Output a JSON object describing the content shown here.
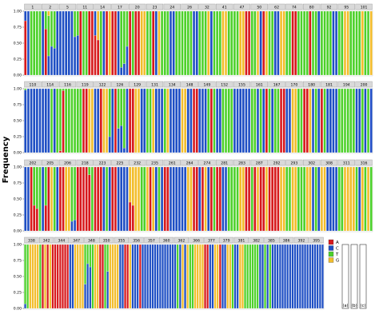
{
  "chart_data": {
    "type": "bar",
    "stacked": true,
    "ylabel": "Frequency",
    "ylim": [
      0,
      1
    ],
    "y_ticks": [
      "0.00",
      "0.25",
      "0.50",
      "0.75",
      "1.00"
    ],
    "legend": {
      "placement": "right",
      "entries": [
        {
          "label": "A",
          "color": "#d7191c"
        },
        {
          "label": "C",
          "color": "#1f4fc4"
        },
        {
          "label": "T",
          "color": "#4dd12a"
        },
        {
          "label": "G",
          "color": "#f2bd2b"
        }
      ]
    },
    "key_panel": {
      "labels": [
        "(a)",
        "(b)",
        "(c)"
      ]
    },
    "panels": [
      {
        "positions": [
          "1",
          "2",
          "5",
          "11",
          "14",
          "17",
          "20",
          "23",
          "24",
          "26",
          "32",
          "41",
          "47",
          "50",
          "62",
          "74",
          "80",
          "92",
          "95",
          "101"
        ],
        "columns": [
          [
            "C",
            "C",
            "C",
            "C",
            "C",
            "C",
            "C",
            "A",
            "A",
            "A",
            "A",
            "A",
            "A",
            "T",
            "T",
            "T",
            "T",
            "T",
            "T",
            "T",
            "T",
            "T",
            "T",
            "T",
            "T",
            "T",
            "T",
            "T",
            "T",
            "T",
            "T",
            "T",
            "T",
            "T",
            "T",
            "T",
            "T",
            "T",
            "T",
            "T"
          ],
          [
            "T",
            "T",
            "T",
            "C",
            "C",
            "C",
            "T",
            "T",
            "T",
            "C",
            "C",
            "C",
            "A",
            "A",
            "A",
            "C",
            "C",
            "C",
            "T",
            "T",
            "T",
            "G",
            "G",
            "G",
            "G",
            "G",
            "G",
            "C",
            "C",
            "C",
            "A",
            "A",
            "A",
            "T",
            "T",
            "T",
            "G",
            "G",
            "G",
            "T"
          ],
          [
            "T",
            "T",
            "T",
            "C",
            "C",
            "C",
            "A",
            "A",
            "A",
            "G",
            "G",
            "G",
            "G",
            "G",
            "G",
            "T",
            "T",
            "T",
            "C",
            "C",
            "C",
            "T",
            "T",
            "T",
            "A",
            "A",
            "A",
            "G",
            "G",
            "G",
            "T",
            "T",
            "T",
            "C",
            "C",
            "C",
            "T",
            "T",
            "T",
            "G"
          ]
        ],
        "mixes": [
          {
            "col": 0,
            "mix": {
              "A": 0.85,
              "C": 0.15
            }
          },
          {
            "col": 7,
            "mix": {
              "A": 0.72,
              "T": 0.28
            }
          },
          {
            "col": 8,
            "mix": {
              "T": 0.63,
              "G": 0.07,
              "C": 0.3
            }
          },
          {
            "col": 9,
            "mix": {
              "T": 0.55,
              "C": 0.45
            }
          },
          {
            "col": 10,
            "mix": {
              "T": 0.58,
              "C": 0.42
            }
          },
          {
            "col": 17,
            "mix": {
              "T": 0.4,
              "C": 0.6
            }
          },
          {
            "col": 18,
            "mix": {
              "T": 0.38,
              "C": 0.62
            }
          },
          {
            "col": 24,
            "mix": {
              "A": 0.62,
              "C": 0.38
            }
          },
          {
            "col": 25,
            "mix": {
              "A": 0.55,
              "G": 0.45
            }
          },
          {
            "col": 33,
            "mix": {
              "T": 0.88,
              "C": 0.12
            }
          },
          {
            "col": 34,
            "mix": {
              "T": 0.82,
              "C": 0.18
            }
          },
          {
            "col": 35,
            "mix": {
              "T": 0.55,
              "C": 0.45
            }
          }
        ]
      },
      {
        "positions": [
          "110",
          "114",
          "116",
          "119",
          "122",
          "126",
          "129",
          "131",
          "134",
          "148",
          "149",
          "152",
          "155",
          "161",
          "167",
          "170",
          "180",
          "181",
          "194",
          "200"
        ],
        "columns": [
          [
            "C",
            "C",
            "C",
            "C",
            "C",
            "T",
            "T",
            "T",
            "C",
            "C",
            "C",
            "A",
            "A",
            "A",
            "T",
            "T",
            "T",
            "G",
            "G",
            "G",
            "C",
            "C",
            "C",
            "C",
            "C",
            "C",
            "T",
            "T",
            "T",
            "C",
            "C",
            "C",
            "A",
            "A",
            "A",
            "T",
            "T",
            "T",
            "C",
            "C"
          ],
          [
            "C",
            "C",
            "C",
            "T",
            "T",
            "T",
            "A",
            "A",
            "A",
            "G",
            "G",
            "G",
            "G",
            "G",
            "G",
            "C",
            "C",
            "C",
            "C",
            "C",
            "C",
            "T",
            "T",
            "T",
            "C",
            "C",
            "C",
            "T",
            "T",
            "T",
            "G",
            "G",
            "G",
            "C",
            "C",
            "C",
            "T",
            "T",
            "T",
            "C"
          ],
          [
            "C",
            "C",
            "C",
            "T",
            "T",
            "T",
            "G",
            "G",
            "G",
            "C",
            "C",
            "C",
            "C",
            "C",
            "C",
            "C",
            "C",
            "C",
            "A",
            "A",
            "A",
            "T",
            "T",
            "T",
            "C",
            "C",
            "C",
            "A",
            "A",
            "A",
            "T",
            "T",
            "T",
            "C",
            "C",
            "C",
            "T",
            "T",
            "T",
            "C"
          ]
        ],
        "mixes": [
          {
            "col": 0,
            "mix": {
              "T": 0.02,
              "C": 0.98
            }
          },
          {
            "col": 12,
            "mix": {
              "A": 0.03,
              "T": 0.97
            }
          },
          {
            "col": 13,
            "mix": {
              "A": 0.97,
              "T": 0.03
            }
          },
          {
            "col": 29,
            "mix": {
              "T": 0.75,
              "C": 0.25
            }
          },
          {
            "col": 32,
            "mix": {
              "T": 0.62,
              "C": 0.38
            }
          },
          {
            "col": 33,
            "mix": {
              "T": 0.58,
              "C": 0.42
            }
          },
          {
            "col": 34,
            "mix": {
              "T": 0.93,
              "C": 0.07
            }
          }
        ]
      },
      {
        "positions": [
          "202",
          "205",
          "206",
          "218",
          "223",
          "225",
          "232",
          "235",
          "261",
          "264",
          "274",
          "281",
          "283",
          "287",
          "292",
          "293",
          "302",
          "308",
          "311",
          "316"
        ],
        "columns": [
          [
            "C",
            "C",
            "C",
            "A",
            "A",
            "A",
            "A",
            "A",
            "A",
            "A",
            "A",
            "A",
            "G",
            "G",
            "G",
            "A",
            "A",
            "A",
            "C",
            "C",
            "C",
            "A",
            "A",
            "A",
            "T",
            "T",
            "T",
            "A",
            "A",
            "A",
            "T",
            "T",
            "T",
            "G",
            "G",
            "G",
            "T",
            "T",
            "T",
            "C"
          ],
          [
            "A",
            "A",
            "A",
            "G",
            "G",
            "G",
            "A",
            "A",
            "A",
            "C",
            "C",
            "C",
            "G",
            "G",
            "G",
            "C",
            "C",
            "C",
            "G",
            "G",
            "G",
            "C",
            "C",
            "C",
            "G",
            "G",
            "G",
            "A",
            "A",
            "A",
            "G",
            "G",
            "G",
            "C",
            "C",
            "C",
            "G",
            "G",
            "G",
            "T"
          ],
          [
            "T",
            "T",
            "T",
            "C",
            "C",
            "C",
            "T",
            "T",
            "T",
            "C",
            "C",
            "C",
            "T",
            "T",
            "T",
            "C",
            "C",
            "C",
            "A",
            "A",
            "A",
            "T",
            "T",
            "T",
            "A",
            "A",
            "A",
            "G",
            "G",
            "G",
            "T",
            "T",
            "T",
            "C",
            "C",
            "C",
            "G",
            "G",
            "G",
            "T"
          ]
        ],
        "mixes": [
          {
            "col": 3,
            "mix": {
              "A": 0.4,
              "T": 0.6
            }
          },
          {
            "col": 4,
            "mix": {
              "A": 0.35,
              "T": 0.65
            }
          },
          {
            "col": 7,
            "mix": {
              "A": 0.4,
              "T": 0.6
            }
          },
          {
            "col": 16,
            "mix": {
              "T": 0.85,
              "C": 0.15
            }
          },
          {
            "col": 17,
            "mix": {
              "T": 0.83,
              "C": 0.17
            }
          },
          {
            "col": 22,
            "mix": {
              "A": 0.88,
              "T": 0.12
            }
          },
          {
            "col": 36,
            "mix": {
              "A": 0.45,
              "G": 0.55
            }
          },
          {
            "col": 37,
            "mix": {
              "A": 0.4,
              "G": 0.6
            }
          }
        ]
      },
      {
        "positions": [
          "338",
          "342",
          "344",
          "347",
          "348",
          "350",
          "355",
          "356",
          "357",
          "360",
          "362",
          "366",
          "377",
          "379",
          "381",
          "382",
          "385",
          "386",
          "392",
          "395"
        ],
        "columns": [
          [
            "T",
            "T",
            "T",
            "A",
            "A",
            "A",
            "C",
            "C",
            "C",
            "A",
            "A",
            "A",
            "G",
            "G",
            "G",
            "C",
            "C",
            "C",
            "C",
            "C",
            "C",
            "T",
            "T",
            "T",
            "A",
            "A",
            "A",
            "C",
            "C",
            "C",
            "T",
            "T",
            "T",
            "C",
            "C",
            "C",
            "C",
            "C",
            "C",
            "C"
          ],
          [
            "G",
            "G",
            "G",
            "A",
            "A",
            "A",
            "G",
            "G",
            "G",
            "T",
            "T",
            "T",
            "C",
            "C",
            "C",
            "C",
            "C",
            "C",
            "C",
            "C",
            "C",
            "G",
            "G",
            "G",
            "C",
            "C",
            "C",
            "G",
            "G",
            "G",
            "T",
            "T",
            "T",
            "C",
            "C",
            "C",
            "C",
            "C",
            "C",
            "C"
          ],
          [
            "G",
            "G",
            "G",
            "A",
            "A",
            "A",
            "G",
            "G",
            "G",
            "G",
            "G",
            "G",
            "A",
            "A",
            "A",
            "C",
            "C",
            "C",
            "C",
            "C",
            "C",
            "G",
            "G",
            "G",
            "G",
            "G",
            "G",
            "T",
            "T",
            "T",
            "C",
            "C",
            "C",
            "C",
            "C",
            "C",
            "C",
            "C",
            "C",
            "C"
          ]
        ],
        "mixes": [
          {
            "col": 0,
            "mix": {
              "T": 0.93,
              "C": 0.07
            }
          },
          {
            "col": 24,
            "mix": {
              "T": 0.62,
              "C": 0.38
            }
          },
          {
            "col": 25,
            "mix": {
              "T": 0.3,
              "C": 0.7
            }
          },
          {
            "col": 26,
            "mix": {
              "T": 0.35,
              "C": 0.65
            }
          },
          {
            "col": 33,
            "mix": {
              "T": 0.42,
              "C": 0.58
            }
          }
        ]
      }
    ]
  }
}
